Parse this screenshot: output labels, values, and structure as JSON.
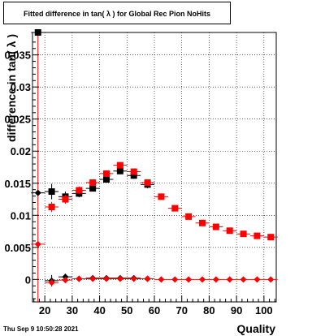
{
  "chart_data": {
    "type": "scatter",
    "title": "Fitted difference in tan( λ ) for Global Rec Pion NoHits",
    "xlabel": "Quality",
    "ylabel": "difference in tan( λ )",
    "xlim": [
      15.5,
      104.5
    ],
    "ylim": [
      -0.0035,
      0.0385
    ],
    "grid": true,
    "x_ticks": [
      20,
      30,
      40,
      50,
      60,
      70,
      80,
      90,
      100
    ],
    "x_tick_labels": [
      "20",
      "30",
      "40",
      "50",
      "60",
      "70",
      "80",
      "90",
      "100"
    ],
    "y_ticks": [
      0,
      0.005,
      0.01,
      0.015,
      0.02,
      0.025,
      0.03,
      0.035
    ],
    "y_tick_labels": [
      "0",
      "0.005",
      "0.01",
      "0.015",
      "0.02",
      "0.025",
      "0.03",
      "0.035"
    ],
    "series": [
      {
        "marker": "square",
        "color": "#000000",
        "x": [
          17.5,
          22.5,
          27.5,
          32.5,
          37.5,
          42.5,
          47.5,
          52.5,
          57.5
        ],
        "values": [
          0.0385,
          0.0137,
          0.0129,
          0.0134,
          0.0142,
          0.0156,
          0.0169,
          0.0162,
          0.0148
        ],
        "errors": [
          0.0,
          0.0012,
          0.0008,
          0.0006,
          0.0005,
          0.0005,
          0.0005,
          0.0005,
          0.0006
        ]
      },
      {
        "marker": "square",
        "color": "#ff0000",
        "x": [
          22.5,
          27.5,
          32.5,
          37.5,
          42.5,
          47.5,
          52.5,
          57.5,
          62.5,
          67.5,
          72.5,
          77.5,
          82.5,
          87.5,
          92.5,
          97.5,
          102.5
        ],
        "values": [
          0.0113,
          0.0125,
          0.0139,
          0.0151,
          0.0165,
          0.0178,
          0.0168,
          0.0151,
          0.0129,
          0.0111,
          0.0098,
          0.0088,
          0.0082,
          0.0076,
          0.0071,
          0.0068,
          0.0066
        ],
        "errors": [
          0.0008,
          0.0007,
          0.0006,
          0.0005,
          0.0005,
          0.0005,
          0.0005,
          0.0005,
          0.0004,
          0.0004,
          0.0003,
          0.0003,
          0.0003,
          0.0003,
          0.0003,
          0.0003,
          0.0003
        ]
      },
      {
        "marker": "diamond",
        "color": "#000000",
        "x": [
          17.5,
          22.5,
          27.5,
          32.5,
          37.5,
          42.5,
          47.5,
          52.5,
          57.5
        ],
        "values": [
          0.0135,
          -0.0002,
          0.0004,
          0.0001,
          0.0002,
          0.0002,
          0.0002,
          0.0002,
          0.0001
        ],
        "errors": [
          0.0,
          0.0009,
          0.0005,
          0.0004,
          0.0003,
          0.0003,
          0.0003,
          0.0003,
          0.0003
        ]
      },
      {
        "marker": "diamond",
        "color": "#ff0000",
        "x": [
          17.5,
          22.5,
          27.5,
          32.5,
          37.5,
          42.5,
          47.5,
          52.5,
          57.5,
          62.5,
          67.5,
          72.5,
          77.5,
          82.5,
          87.5,
          92.5,
          97.5,
          102.5
        ],
        "values": [
          0.0055,
          -0.0005,
          -0.0001,
          0.0001,
          0.0001,
          0.0001,
          0.0001,
          0.0001,
          0.0001,
          0.0,
          0.0,
          0.0,
          0.0,
          0.0,
          0.0,
          0.0,
          0.0,
          0.0
        ],
        "errors": [
          0.0,
          0.0006,
          0.0004,
          0.0003,
          0.0003,
          0.0003,
          0.0003,
          0.0003,
          0.0003,
          0.0003,
          0.0003,
          0.0003,
          0.0003,
          0.0003,
          0.0003,
          0.0003,
          0.0003,
          0.0003
        ]
      }
    ]
  },
  "footer": {
    "date": "Thu Sep  9 10:50:28 2021"
  }
}
